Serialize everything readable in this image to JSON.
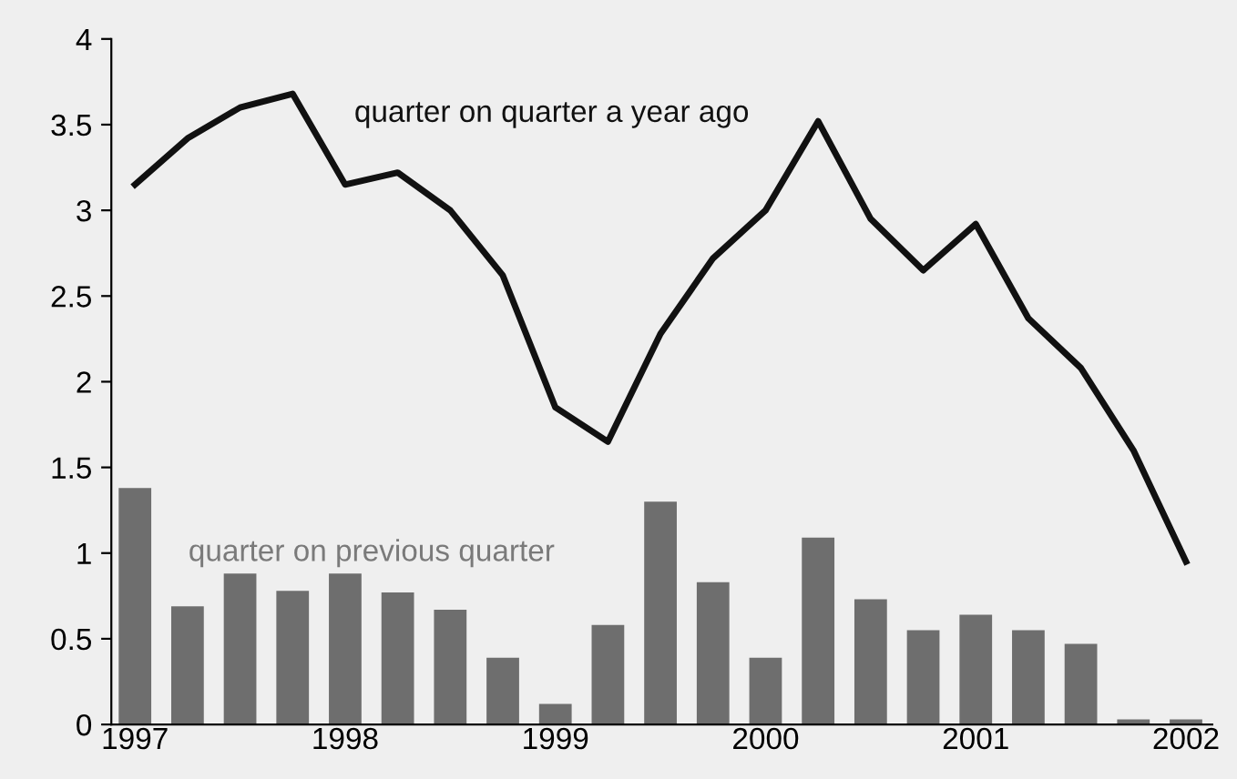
{
  "chart_data": {
    "type": "bar",
    "categories": [
      "1997",
      null,
      null,
      null,
      "1998",
      null,
      null,
      null,
      "1999",
      null,
      null,
      null,
      "2000",
      null,
      null,
      null,
      "2001",
      null,
      null,
      null,
      "2002"
    ],
    "series": [
      {
        "name": "quarter on previous quarter",
        "color": "#6e6e6e",
        "values": [
          1.38,
          0.69,
          0.88,
          0.78,
          0.88,
          0.77,
          0.67,
          0.39,
          0.12,
          0.58,
          1.3,
          0.83,
          0.39,
          1.09,
          0.73,
          0.55,
          0.64,
          0.55,
          0.47,
          0.03,
          0.03
        ]
      },
      {
        "name": "quarter on quarter a year ago",
        "type": "line",
        "color": "#111111",
        "values": [
          3.15,
          3.42,
          3.6,
          3.68,
          3.15,
          3.22,
          3.0,
          2.62,
          1.85,
          1.65,
          2.28,
          2.72,
          3.0,
          3.52,
          2.95,
          2.65,
          2.92,
          2.37,
          2.08,
          1.6,
          0.95
        ]
      }
    ],
    "ylim": [
      0,
      4
    ],
    "yticks": [
      0,
      0.5,
      1,
      1.5,
      2,
      2.5,
      3,
      3.5,
      4
    ],
    "legend": false
  }
}
